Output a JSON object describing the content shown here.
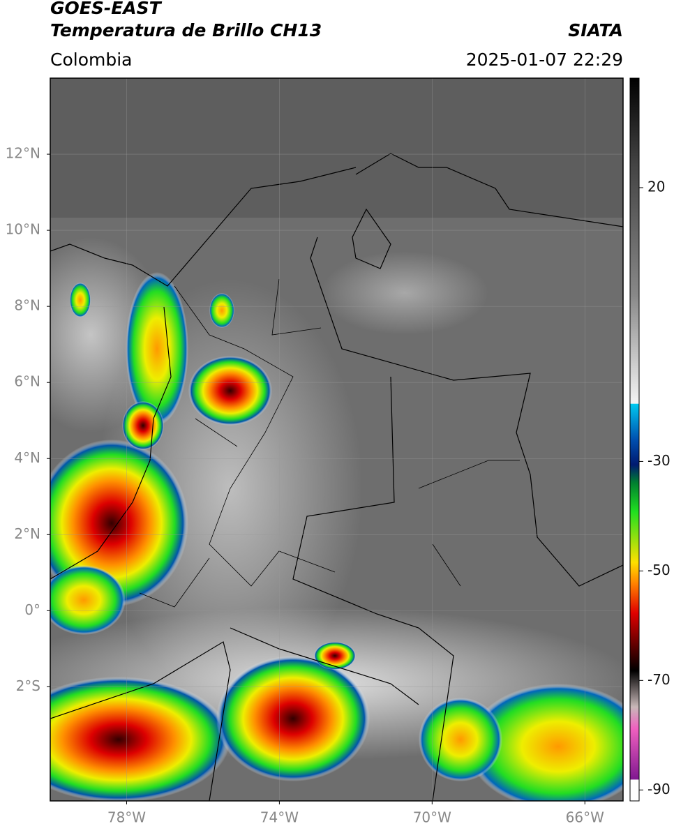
{
  "header": {
    "title": "GOES-EAST",
    "subtitle": "Temperatura de Brillo CH13",
    "region": "Colombia",
    "source": "SIATA",
    "datetime": "2025-01-07 22:29"
  },
  "map": {
    "xlim": [
      -80,
      -65
    ],
    "ylim": [
      -5,
      14
    ],
    "xticks": [
      {
        "value": -78,
        "label": "78°W"
      },
      {
        "value": -74,
        "label": "74°W"
      },
      {
        "value": -70,
        "label": "70°W"
      },
      {
        "value": -66,
        "label": "66°W"
      }
    ],
    "yticks": [
      {
        "value": 12,
        "label": "12°N"
      },
      {
        "value": 10,
        "label": "10°N"
      },
      {
        "value": 8,
        "label": "8°N"
      },
      {
        "value": 6,
        "label": "6°N"
      },
      {
        "value": 4,
        "label": "4°N"
      },
      {
        "value": 2,
        "label": "2°N"
      },
      {
        "value": 0,
        "label": "0°"
      },
      {
        "value": -2,
        "label": "2°S"
      }
    ],
    "grid": true
  },
  "colorbar": {
    "lim": [
      -92,
      40
    ],
    "ticks": [
      20,
      -30,
      -50,
      -70,
      -90
    ]
  }
}
